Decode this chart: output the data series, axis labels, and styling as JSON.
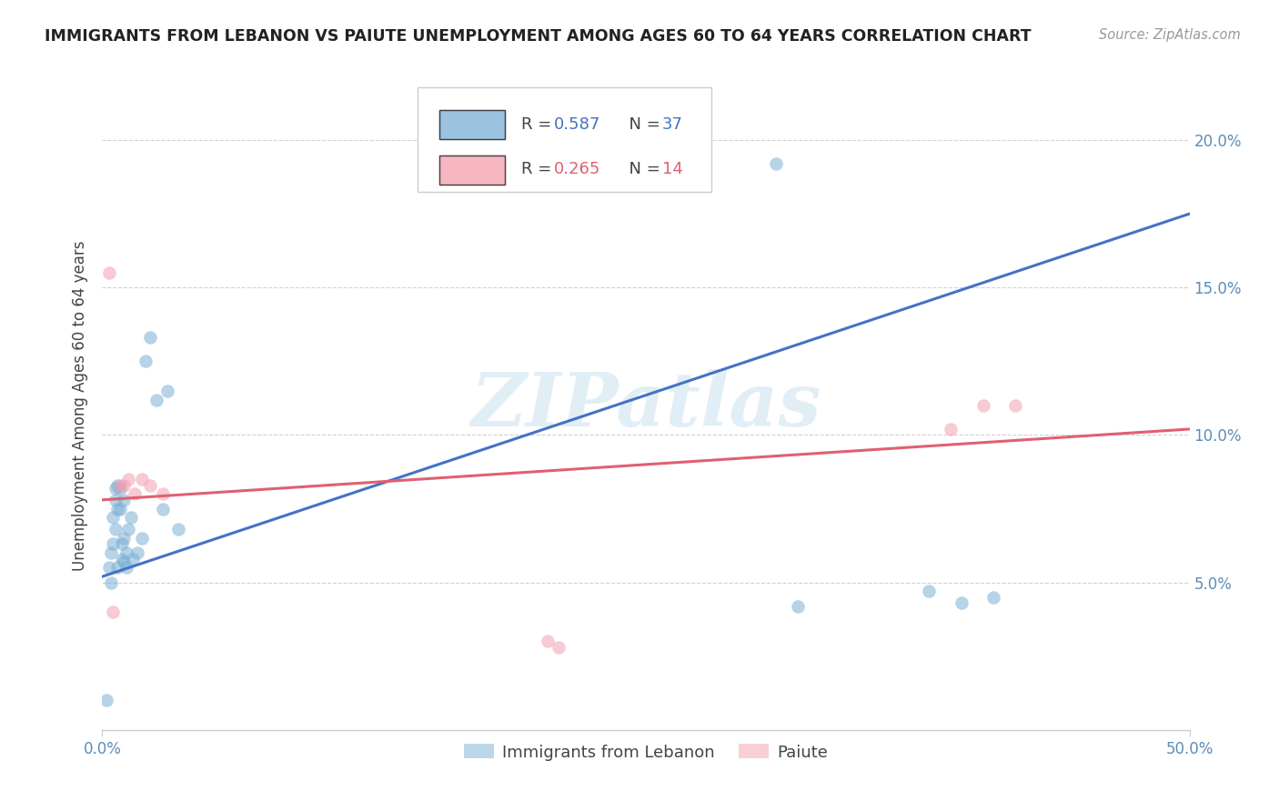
{
  "title": "IMMIGRANTS FROM LEBANON VS PAIUTE UNEMPLOYMENT AMONG AGES 60 TO 64 YEARS CORRELATION CHART",
  "source": "Source: ZipAtlas.com",
  "ylabel": "Unemployment Among Ages 60 to 64 years",
  "xlim": [
    0.0,
    0.5
  ],
  "ylim": [
    0.0,
    0.22
  ],
  "xticks": [
    0.0,
    0.5
  ],
  "xticklabels": [
    "0.0%",
    "50.0%"
  ],
  "yticks": [
    0.05,
    0.1,
    0.15,
    0.2
  ],
  "yticklabels": [
    "5.0%",
    "10.0%",
    "15.0%",
    "20.0%"
  ],
  "blue_R": "0.587",
  "blue_N": "37",
  "pink_R": "0.265",
  "pink_N": "14",
  "blue_color": "#7BAFD4",
  "pink_color": "#F4A0B0",
  "blue_line_color": "#4472C4",
  "pink_line_color": "#E06070",
  "blue_text_color": "#4472C4",
  "pink_text_color": "#E06070",
  "axis_tick_color": "#5B8DB8",
  "watermark_text": "ZIPatlas",
  "watermark_color": "#D0E4F0",
  "blue_points_x": [
    0.003,
    0.004,
    0.004,
    0.005,
    0.005,
    0.006,
    0.006,
    0.006,
    0.007,
    0.007,
    0.007,
    0.008,
    0.008,
    0.009,
    0.009,
    0.01,
    0.01,
    0.01,
    0.011,
    0.011,
    0.012,
    0.013,
    0.014,
    0.016,
    0.018,
    0.02,
    0.022,
    0.025,
    0.028,
    0.03,
    0.035,
    0.31,
    0.32,
    0.38,
    0.395,
    0.41,
    0.002
  ],
  "blue_points_y": [
    0.055,
    0.05,
    0.06,
    0.063,
    0.072,
    0.078,
    0.082,
    0.068,
    0.075,
    0.083,
    0.055,
    0.075,
    0.082,
    0.058,
    0.063,
    0.057,
    0.065,
    0.078,
    0.055,
    0.06,
    0.068,
    0.072,
    0.058,
    0.06,
    0.065,
    0.125,
    0.133,
    0.112,
    0.075,
    0.115,
    0.068,
    0.192,
    0.042,
    0.047,
    0.043,
    0.045,
    0.01
  ],
  "pink_points_x": [
    0.003,
    0.005,
    0.008,
    0.01,
    0.012,
    0.015,
    0.018,
    0.022,
    0.028,
    0.205,
    0.21,
    0.39,
    0.405,
    0.42
  ],
  "pink_points_y": [
    0.155,
    0.04,
    0.083,
    0.083,
    0.085,
    0.08,
    0.085,
    0.083,
    0.08,
    0.03,
    0.028,
    0.102,
    0.11,
    0.11
  ],
  "blue_trendline_x": [
    0.0,
    0.5
  ],
  "blue_trendline_y": [
    0.052,
    0.175
  ],
  "pink_trendline_x": [
    0.0,
    0.5
  ],
  "pink_trendline_y": [
    0.078,
    0.102
  ]
}
